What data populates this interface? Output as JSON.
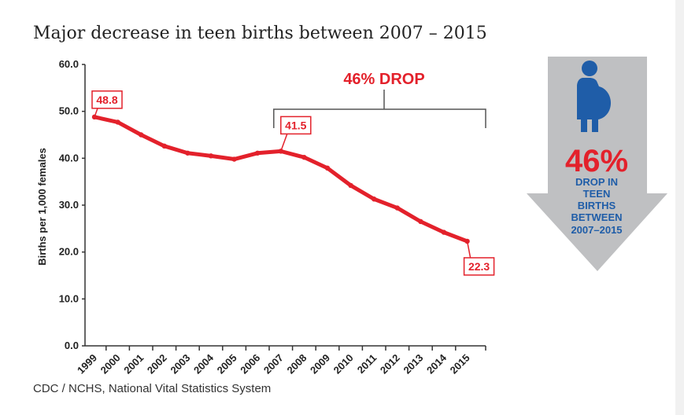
{
  "title": "Major decrease in teen births between 2007 – 2015",
  "source": "CDC / NCHS, National Vital Statistics System",
  "colors": {
    "line": "#e3212b",
    "axis": "#333333",
    "arrow_gray": "#bfc0c2",
    "figure_blue": "#1f5da8"
  },
  "chart_data": {
    "type": "line",
    "title": "Major decrease in teen births between 2007 – 2015",
    "xlabel": "",
    "ylabel": "Births per 1,000 females",
    "ylim": [
      0,
      60
    ],
    "yticks": [
      "0.0",
      "10.0",
      "20.0",
      "30.0",
      "40.0",
      "50.0",
      "60.0"
    ],
    "grid": false,
    "categories": [
      "1999",
      "2000",
      "2001",
      "2002",
      "2003",
      "2004",
      "2005",
      "2006",
      "2007",
      "2008",
      "2009",
      "2010",
      "2011",
      "2012",
      "2013",
      "2014",
      "2015"
    ],
    "series": [
      {
        "values": [
          48.8,
          47.7,
          45.0,
          42.6,
          41.1,
          40.5,
          39.8,
          41.1,
          41.5,
          40.2,
          37.9,
          34.2,
          31.3,
          29.4,
          26.5,
          24.2,
          22.3
        ]
      }
    ],
    "callouts": [
      {
        "category": "1999",
        "label": "48.8"
      },
      {
        "category": "2007",
        "label": "41.5"
      },
      {
        "category": "2015",
        "label": "22.3"
      }
    ],
    "bracket": {
      "from": "2007",
      "to": "2015",
      "label": "46% DROP"
    }
  },
  "infographic": {
    "percent": "46%",
    "lines": [
      "DROP IN",
      "TEEN",
      "BIRTHS",
      "BETWEEN",
      "2007–2015"
    ]
  }
}
